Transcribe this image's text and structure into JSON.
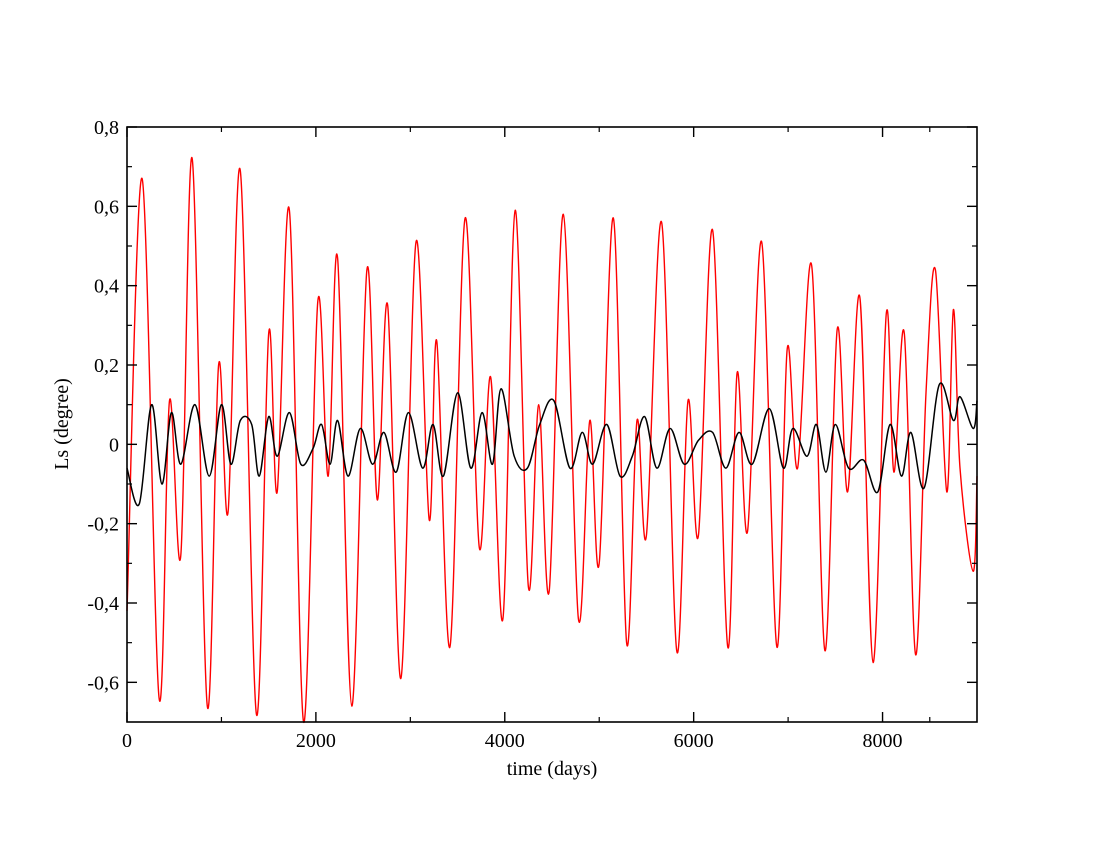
{
  "chart_data": {
    "type": "line",
    "title": "",
    "xlabel": "time (days)",
    "ylabel": "Ls (degree)",
    "xlim": [
      0,
      9000
    ],
    "ylim": [
      -0.7,
      0.8
    ],
    "grid": false,
    "legend": "none",
    "x_ticks": [
      {
        "value": 0,
        "label": "0"
      },
      {
        "value": 2000,
        "label": "2000"
      },
      {
        "value": 4000,
        "label": "4000"
      },
      {
        "value": 6000,
        "label": "6000"
      },
      {
        "value": 8000,
        "label": "8000"
      }
    ],
    "y_ticks": [
      {
        "value": -0.6,
        "label": "-0,6"
      },
      {
        "value": -0.4,
        "label": "-0,4"
      },
      {
        "value": -0.2,
        "label": "-0,2"
      },
      {
        "value": 0,
        "label": "0"
      },
      {
        "value": 0.2,
        "label": "0,2"
      },
      {
        "value": 0.4,
        "label": "0,4"
      },
      {
        "value": 0.6,
        "label": "0,6"
      },
      {
        "value": 0.8,
        "label": "0,8"
      }
    ],
    "series": [
      {
        "color": "#ff0000",
        "x": [
          0,
          160,
          340,
          450,
          570,
          690,
          850,
          970,
          1070,
          1200,
          1370,
          1500,
          1590,
          1720,
          1870,
          2020,
          2130,
          2230,
          2380,
          2540,
          2650,
          2760,
          2900,
          3060,
          3200,
          3280,
          3420,
          3580,
          3730,
          3850,
          3980,
          4110,
          4250,
          4360,
          4470,
          4620,
          4780,
          4900,
          5000,
          5150,
          5290,
          5400,
          5500,
          5660,
          5820,
          5940,
          6050,
          6200,
          6360,
          6460,
          6570,
          6720,
          6880,
          6990,
          7100,
          7250,
          7390,
          7520,
          7630,
          7760,
          7900,
          8040,
          8120,
          8230,
          8350,
          8460,
          8560,
          8680,
          8750,
          8820,
          8960,
          9000
        ],
        "y": [
          -0.42,
          0.67,
          -0.64,
          0.11,
          -0.28,
          0.72,
          -0.66,
          0.2,
          -0.17,
          0.69,
          -0.68,
          0.28,
          -0.12,
          0.59,
          -0.7,
          0.36,
          -0.08,
          0.47,
          -0.66,
          0.44,
          -0.14,
          0.35,
          -0.59,
          0.51,
          -0.19,
          0.26,
          -0.51,
          0.57,
          -0.26,
          0.17,
          -0.44,
          0.59,
          -0.36,
          0.1,
          -0.37,
          0.58,
          -0.44,
          0.06,
          -0.3,
          0.57,
          -0.5,
          0.06,
          -0.23,
          0.56,
          -0.52,
          0.11,
          -0.23,
          0.54,
          -0.51,
          0.18,
          -0.22,
          0.51,
          -0.51,
          0.24,
          -0.06,
          0.45,
          -0.52,
          0.29,
          -0.12,
          0.37,
          -0.55,
          0.33,
          -0.07,
          0.28,
          -0.53,
          0.13,
          0.44,
          -0.12,
          0.34,
          -0.06,
          -0.32,
          -0.08
        ]
      },
      {
        "color": "#000000",
        "x": [
          0,
          130,
          260,
          370,
          470,
          570,
          720,
          870,
          1000,
          1100,
          1200,
          1320,
          1400,
          1500,
          1590,
          1720,
          1840,
          1970,
          2060,
          2150,
          2230,
          2340,
          2470,
          2600,
          2720,
          2850,
          2980,
          3130,
          3240,
          3350,
          3500,
          3640,
          3760,
          3870,
          3960,
          4100,
          4240,
          4370,
          4520,
          4690,
          4820,
          4930,
          5080,
          5220,
          5350,
          5480,
          5610,
          5750,
          5900,
          6050,
          6200,
          6340,
          6480,
          6620,
          6800,
          6950,
          7050,
          7200,
          7300,
          7400,
          7500,
          7640,
          7800,
          7950,
          8080,
          8200,
          8300,
          8440,
          8600,
          8750,
          8820,
          8960,
          9000
        ],
        "y": [
          -0.06,
          -0.15,
          0.1,
          -0.1,
          0.08,
          -0.05,
          0.1,
          -0.08,
          0.1,
          -0.05,
          0.06,
          0.05,
          -0.08,
          0.07,
          -0.03,
          0.08,
          -0.05,
          -0.01,
          0.05,
          -0.05,
          0.06,
          -0.08,
          0.04,
          -0.05,
          0.03,
          -0.07,
          0.08,
          -0.06,
          0.05,
          -0.08,
          0.13,
          -0.06,
          0.08,
          -0.05,
          0.14,
          -0.03,
          -0.06,
          0.05,
          0.11,
          -0.06,
          0.03,
          -0.05,
          0.05,
          -0.08,
          -0.03,
          0.07,
          -0.06,
          0.04,
          -0.05,
          0.01,
          0.03,
          -0.06,
          0.03,
          -0.05,
          0.09,
          -0.06,
          0.04,
          -0.03,
          0.05,
          -0.07,
          0.05,
          -0.06,
          -0.04,
          -0.12,
          0.05,
          -0.08,
          0.03,
          -0.11,
          0.15,
          0.06,
          0.12,
          0.04,
          0.11
        ]
      }
    ]
  }
}
